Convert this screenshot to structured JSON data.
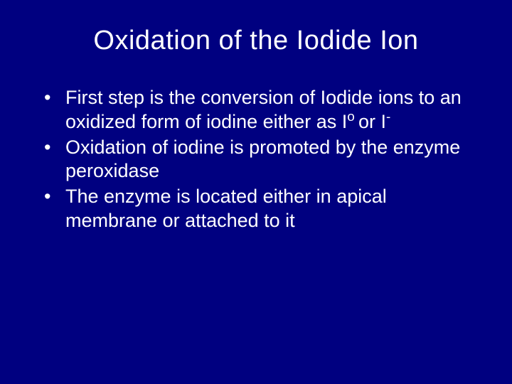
{
  "slide": {
    "title": "Oxidation of the Iodide Ion",
    "bullets": [
      {
        "pre": " First step is the conversion of Iodide ions to an oxidized form of iodine either as I",
        "sup1": "o ",
        "mid": "or I",
        "sup2": "-",
        "post": ""
      },
      {
        "text": " Oxidation of iodine is promoted by the enzyme peroxidase"
      },
      {
        "text": " The enzyme is located either in apical membrane or attached to it"
      }
    ],
    "colors": {
      "background": "#000080",
      "text": "#ffffff"
    },
    "typography": {
      "title_fontsize": 38,
      "body_fontsize": 27,
      "font_family": "Arial"
    }
  }
}
